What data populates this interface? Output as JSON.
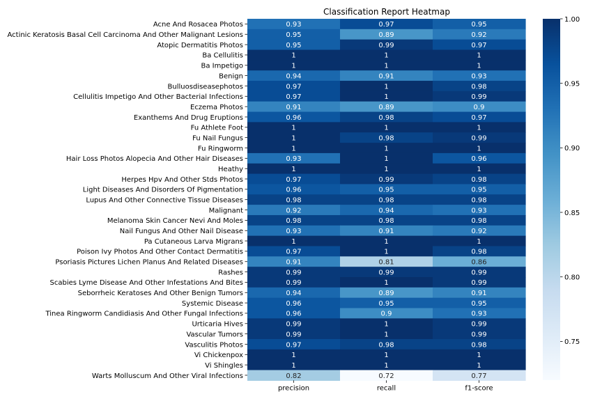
{
  "chart_data": {
    "type": "heatmap",
    "title": "Classification Report Heatmap",
    "columns": [
      "precision",
      "recall",
      "f1-score"
    ],
    "rows": [
      "Acne And Rosacea Photos",
      "Actinic Keratosis Basal Cell Carcinoma And Other Malignant Lesions",
      "Atopic Dermatitis Photos",
      "Ba  Cellulitis",
      "Ba Impetigo",
      "Benign",
      "Bulluosdiseasephotos",
      "Cellulitis Impetigo And Other Bacterial Infections",
      "Eczema Photos",
      "Exanthems And Drug Eruptions",
      "Fu Athlete Foot",
      "Fu Nail Fungus",
      "Fu Ringworm",
      "Hair Loss Photos Alopecia And Other Hair Diseases",
      "Heathy",
      "Herpes Hpv And Other Stds Photos",
      "Light Diseases And Disorders Of Pigmentation",
      "Lupus And Other Connective Tissue Diseases",
      "Malignant",
      "Melanoma Skin Cancer Nevi And Moles",
      "Nail Fungus And Other Nail Disease",
      "Pa Cutaneous Larva Migrans",
      "Poison Ivy Photos And Other Contact Dermatitis",
      "Psoriasis Pictures Lichen Planus And Related Diseases",
      "Rashes",
      "Scabies Lyme Disease And Other Infestations And Bites",
      "Seborrheic Keratoses And Other Benign Tumors",
      "Systemic Disease",
      "Tinea Ringworm Candidiasis And Other Fungal Infections",
      "Urticaria Hives",
      "Vascular Tumors",
      "Vasculitis Photos",
      "Vi Chickenpox",
      "Vi Shingles",
      "Warts Molluscum And Other Viral Infections"
    ],
    "values": [
      [
        0.93,
        0.97,
        0.95
      ],
      [
        0.95,
        0.89,
        0.92
      ],
      [
        0.95,
        0.99,
        0.97
      ],
      [
        1,
        1,
        1
      ],
      [
        1,
        1,
        1
      ],
      [
        0.94,
        0.91,
        0.93
      ],
      [
        0.97,
        1,
        0.98
      ],
      [
        0.97,
        1,
        0.99
      ],
      [
        0.91,
        0.89,
        0.9
      ],
      [
        0.96,
        0.98,
        0.97
      ],
      [
        1,
        1,
        1
      ],
      [
        1,
        0.98,
        0.99
      ],
      [
        1,
        1,
        1
      ],
      [
        0.93,
        1,
        0.96
      ],
      [
        1,
        1,
        1
      ],
      [
        0.97,
        0.99,
        0.98
      ],
      [
        0.96,
        0.95,
        0.95
      ],
      [
        0.98,
        0.98,
        0.98
      ],
      [
        0.92,
        0.94,
        0.93
      ],
      [
        0.98,
        0.98,
        0.98
      ],
      [
        0.93,
        0.91,
        0.92
      ],
      [
        1,
        1,
        1
      ],
      [
        0.97,
        1,
        0.98
      ],
      [
        0.91,
        0.81,
        0.86
      ],
      [
        0.99,
        0.99,
        0.99
      ],
      [
        0.99,
        1,
        0.99
      ],
      [
        0.94,
        0.89,
        0.91
      ],
      [
        0.96,
        0.95,
        0.95
      ],
      [
        0.96,
        0.9,
        0.93
      ],
      [
        0.99,
        1,
        0.99
      ],
      [
        0.99,
        1,
        0.99
      ],
      [
        0.97,
        0.98,
        0.98
      ],
      [
        1,
        1,
        1
      ],
      [
        1,
        1,
        1
      ],
      [
        0.82,
        0.72,
        0.77
      ]
    ],
    "colorbar": {
      "min": 0.72,
      "max": 1.0,
      "ticks": [
        0.75,
        0.8,
        0.85,
        0.9,
        0.95,
        1.0
      ],
      "tick_labels": [
        "0.75",
        "0.80",
        "0.85",
        "0.90",
        "0.95",
        "1.00"
      ],
      "colormap": "Blues"
    },
    "annotations": true
  }
}
